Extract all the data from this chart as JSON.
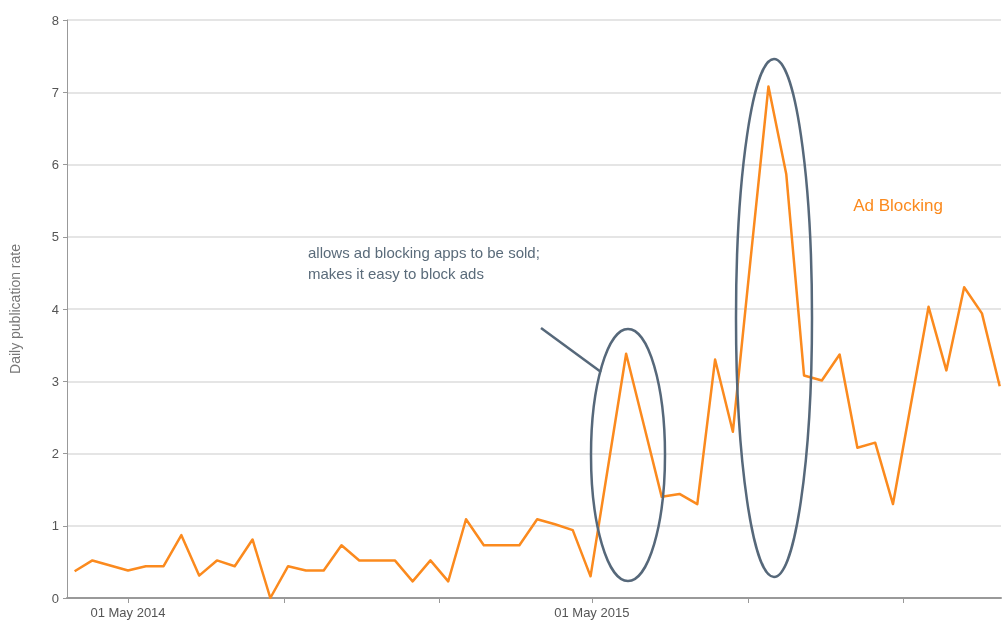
{
  "chart_data": {
    "type": "line",
    "ylabel": "Daily publication rate",
    "x": [
      "2014-03-20",
      "2014-04-03",
      "2014-04-17",
      "2014-05-01",
      "2014-05-15",
      "2014-05-29",
      "2014-06-12",
      "2014-06-26",
      "2014-07-10",
      "2014-07-24",
      "2014-08-07",
      "2014-08-21",
      "2014-09-04",
      "2014-09-18",
      "2014-10-02",
      "2014-10-16",
      "2014-10-30",
      "2014-11-13",
      "2014-11-27",
      "2014-12-11",
      "2014-12-25",
      "2015-01-08",
      "2015-01-22",
      "2015-02-05",
      "2015-02-19",
      "2015-03-05",
      "2015-03-19",
      "2015-04-02",
      "2015-04-16",
      "2015-04-30",
      "2015-05-14",
      "2015-05-28",
      "2015-06-11",
      "2015-06-25",
      "2015-07-09",
      "2015-07-23",
      "2015-08-06",
      "2015-08-20",
      "2015-09-03",
      "2015-09-17",
      "2015-10-01",
      "2015-10-15",
      "2015-10-29",
      "2015-11-12",
      "2015-11-26",
      "2015-12-10",
      "2015-12-24",
      "2016-01-07",
      "2016-01-21",
      "2016-02-04",
      "2016-02-18",
      "2016-03-03",
      "2016-03-17"
    ],
    "series": [
      {
        "name": "Ad Blocking",
        "color": "#fb8a1e",
        "values": [
          0.37,
          0.52,
          0.45,
          0.38,
          0.44,
          0.44,
          0.87,
          0.31,
          0.52,
          0.44,
          0.81,
          0.0,
          0.44,
          0.38,
          0.38,
          0.73,
          0.52,
          0.52,
          0.52,
          0.23,
          0.52,
          0.23,
          1.09,
          0.73,
          0.73,
          0.73,
          1.09,
          1.02,
          0.94,
          0.3,
          1.84,
          3.38,
          2.39,
          1.4,
          1.44,
          1.3,
          3.3,
          2.3,
          4.7,
          7.08,
          5.87,
          3.08,
          3.01,
          3.37,
          2.08,
          2.15,
          1.3,
          2.67,
          4.03,
          3.15,
          4.3,
          3.94,
          2.93
        ]
      }
    ],
    "xlim": [
      "2014-03-14",
      "2016-03-18"
    ],
    "xticks": [
      {
        "value": "2014-05-01",
        "label": "01 May 2014"
      },
      {
        "value": "2014-09-01",
        "label": null
      },
      {
        "value": "2015-01-01",
        "label": null
      },
      {
        "value": "2015-05-01",
        "label": "01 May 2015"
      },
      {
        "value": "2015-09-01",
        "label": null
      },
      {
        "value": "2016-01-01",
        "label": null
      }
    ],
    "ylim": [
      0,
      8
    ],
    "yticks": [
      0,
      1,
      2,
      3,
      4,
      5,
      6,
      7,
      8
    ],
    "grid": "y",
    "legend": "top right",
    "marker": "none",
    "line_style": "solid",
    "annotations": [
      "allows ad blocking apps to be sold; makes it easy to block ads"
    ]
  }
}
